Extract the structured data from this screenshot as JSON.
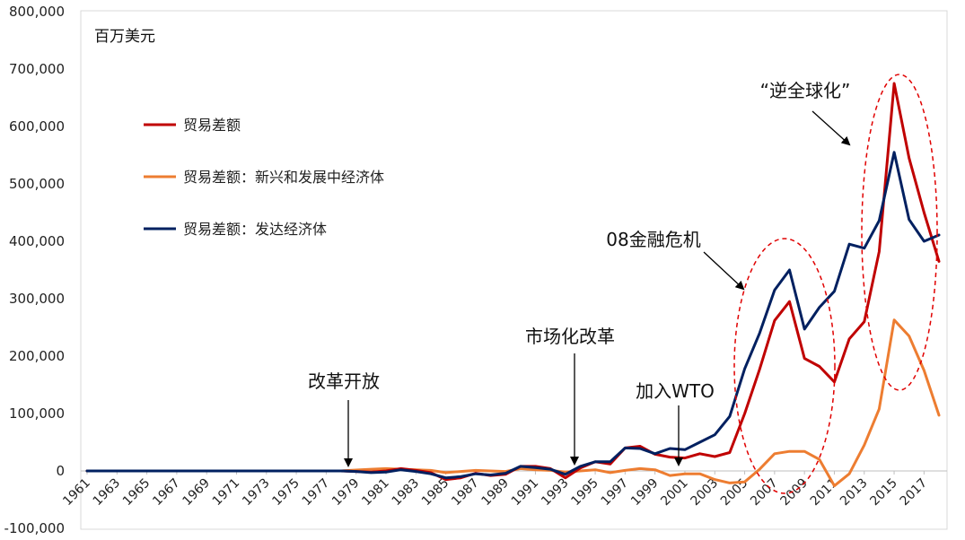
{
  "chart_data": {
    "type": "line",
    "unit_label": "百万美元",
    "x": [
      1961,
      1962,
      1963,
      1964,
      1965,
      1966,
      1967,
      1968,
      1969,
      1970,
      1971,
      1972,
      1973,
      1974,
      1975,
      1976,
      1977,
      1978,
      1979,
      1980,
      1981,
      1982,
      1983,
      1984,
      1985,
      1986,
      1987,
      1988,
      1989,
      1990,
      1991,
      1992,
      1993,
      1994,
      1995,
      1996,
      1997,
      1998,
      1999,
      2000,
      2001,
      2002,
      2003,
      2004,
      2005,
      2006,
      2007,
      2008,
      2009,
      2010,
      2011,
      2012,
      2013,
      2014,
      2015,
      2016,
      2017,
      2018
    ],
    "x_tick_labels": [
      "1961",
      "1963",
      "1965",
      "1967",
      "1969",
      "1971",
      "1973",
      "1975",
      "1977",
      "1979",
      "1981",
      "1983",
      "1985",
      "1987",
      "1989",
      "1991",
      "1993",
      "1995",
      "1997",
      "1999",
      "2001",
      "2003",
      "2005",
      "2007",
      "2009",
      "2011",
      "2013",
      "2015",
      "2017"
    ],
    "ylim": [
      -100000,
      800000
    ],
    "y_tick_values": [
      -100000,
      0,
      100000,
      200000,
      300000,
      400000,
      500000,
      600000,
      700000,
      800000
    ],
    "y_tick_labels": [
      "-100,000",
      "0",
      "100,000",
      "200,000",
      "300,000",
      "400,000",
      "500,000",
      "600,000",
      "700,000",
      "800,000"
    ],
    "legend_position": "upper-left",
    "series": [
      {
        "name": "贸易差额",
        "color": "#C00000",
        "values": [
          0,
          0,
          0,
          0,
          0,
          0,
          0,
          0,
          0,
          0,
          0,
          0,
          0,
          0,
          0,
          0,
          0,
          0,
          -1000,
          -2000,
          0,
          4000,
          1000,
          -3000,
          -15000,
          -12000,
          -4000,
          -8000,
          -6000,
          8000,
          8000,
          4000,
          -12000,
          5000,
          16000,
          12000,
          40000,
          43000,
          29000,
          24000,
          22500,
          30000,
          25000,
          32000,
          100000,
          177000,
          262000,
          295000,
          196000,
          182000,
          155000,
          230000,
          260000,
          382000,
          675000,
          545000,
          450000,
          365000
        ]
      },
      {
        "name": "贸易差额：新兴和发展中经济体",
        "color": "#ED7D31",
        "values": [
          0,
          0,
          0,
          0,
          0,
          0,
          0,
          0,
          0,
          0,
          0,
          0,
          0,
          0,
          0,
          0,
          0,
          0,
          1500,
          3000,
          4000,
          3000,
          2000,
          1000,
          -3000,
          -1000,
          1000,
          0,
          -1000,
          4000,
          2000,
          1000,
          -2000,
          0,
          2000,
          -3000,
          1000,
          4000,
          2000,
          -8000,
          -5000,
          -5000,
          -15000,
          -21000,
          -19000,
          3000,
          30000,
          34000,
          34000,
          20000,
          -26000,
          -5000,
          45000,
          108000,
          263000,
          235000,
          175000,
          97000
        ]
      },
      {
        "name": "贸易差额：发达经济体",
        "color": "#002060",
        "values": [
          0,
          0,
          0,
          0,
          0,
          0,
          0,
          0,
          0,
          0,
          0,
          0,
          0,
          0,
          0,
          0,
          0,
          0,
          -1000,
          -3000,
          -2000,
          2000,
          -1000,
          -5000,
          -12000,
          -10000,
          -5000,
          -7000,
          -4000,
          8000,
          6000,
          3000,
          -6000,
          8000,
          16000,
          16000,
          40000,
          39000,
          30000,
          39000,
          37000,
          50000,
          63000,
          95000,
          178000,
          240000,
          315000,
          350000,
          247000,
          285000,
          313000,
          395000,
          388000,
          436000,
          555000,
          438000,
          400000,
          411000
        ]
      }
    ],
    "annotations": [
      {
        "text": "改革开放",
        "target_x": 1979,
        "target_y": 0
      },
      {
        "text": "市场化改革",
        "target_x": 1994,
        "target_y": 0
      },
      {
        "text": "加入WTO",
        "target_x": 2001,
        "target_y": 0
      },
      {
        "text": "08金融危机",
        "target_x": 2006,
        "target_y": 310000
      },
      {
        "text": "“逆全球化”",
        "target_x": 2013,
        "target_y": 560000
      }
    ]
  }
}
